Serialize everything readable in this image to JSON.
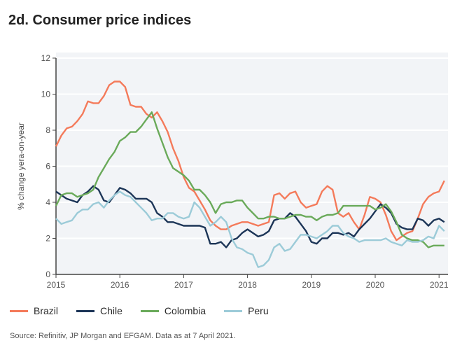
{
  "title": "2d. Consumer price indices",
  "source": "Source: Refinitiv, JP Morgan and EFGAM. Data as at 7 April 2021.",
  "chart_data": {
    "type": "line",
    "title": "2d. Consumer price indices",
    "xlabel": "",
    "ylabel": "% change yera-on-year",
    "ylim": [
      0,
      12
    ],
    "yticks": [
      "0",
      "2",
      "4",
      "6",
      "8",
      "10",
      "12"
    ],
    "xticks": [
      "2015",
      "2016",
      "2017",
      "2018",
      "2019",
      "2020",
      "2021"
    ],
    "x_start": "2015-01",
    "x_frequency": "monthly",
    "grid": "horizontal",
    "legend": "bottom",
    "series": [
      {
        "name": "Brazil",
        "color": "#f47a5a",
        "values": [
          7.1,
          7.7,
          8.1,
          8.2,
          8.5,
          8.9,
          9.6,
          9.5,
          9.5,
          9.9,
          10.5,
          10.7,
          10.7,
          10.4,
          9.4,
          9.3,
          9.3,
          8.9,
          8.7,
          9.0,
          8.5,
          7.9,
          7.0,
          6.3,
          5.4,
          4.8,
          4.6,
          4.1,
          3.6,
          3.0,
          2.7,
          2.5,
          2.5,
          2.7,
          2.8,
          2.9,
          2.9,
          2.8,
          2.7,
          2.8,
          2.9,
          4.4,
          4.5,
          4.2,
          4.5,
          4.6,
          4.0,
          3.7,
          3.8,
          3.9,
          4.6,
          4.9,
          4.7,
          3.4,
          3.2,
          3.4,
          2.9,
          2.5,
          3.3,
          4.3,
          4.2,
          4.0,
          3.3,
          2.4,
          1.9,
          2.1,
          2.3,
          2.4,
          3.1,
          3.9,
          4.3,
          4.5,
          4.6,
          5.2
        ]
      },
      {
        "name": "Chile",
        "color": "#1c3557",
        "values": [
          4.6,
          4.4,
          4.2,
          4.1,
          4.0,
          4.4,
          4.6,
          4.9,
          4.7,
          4.1,
          4.0,
          4.4,
          4.8,
          4.7,
          4.5,
          4.2,
          4.2,
          4.2,
          4.0,
          3.4,
          3.2,
          2.9,
          2.9,
          2.8,
          2.7,
          2.7,
          2.7,
          2.7,
          2.6,
          1.7,
          1.7,
          1.8,
          1.5,
          1.9,
          2.0,
          2.3,
          2.5,
          2.3,
          2.1,
          2.2,
          2.4,
          3.0,
          3.1,
          3.1,
          3.4,
          3.2,
          2.8,
          2.4,
          1.8,
          1.7,
          2.0,
          2.0,
          2.3,
          2.3,
          2.2,
          2.3,
          2.1,
          2.5,
          2.8,
          3.1,
          3.5,
          3.9,
          3.7,
          3.4,
          2.8,
          2.6,
          2.5,
          2.5,
          3.1,
          3.0,
          2.7,
          3.0,
          3.1,
          2.9
        ]
      },
      {
        "name": "Colombia",
        "color": "#6aaa5a",
        "values": [
          3.8,
          4.4,
          4.5,
          4.5,
          4.3,
          4.4,
          4.5,
          4.7,
          5.4,
          5.9,
          6.4,
          6.8,
          7.4,
          7.6,
          7.9,
          7.9,
          8.2,
          8.6,
          9.0,
          8.1,
          7.3,
          6.5,
          5.9,
          5.7,
          5.5,
          5.2,
          4.7,
          4.7,
          4.4,
          4.0,
          3.4,
          3.9,
          4.0,
          4.0,
          4.1,
          4.1,
          3.7,
          3.4,
          3.1,
          3.1,
          3.2,
          3.2,
          3.1,
          3.1,
          3.2,
          3.3,
          3.3,
          3.2,
          3.2,
          3.0,
          3.2,
          3.3,
          3.3,
          3.4,
          3.8,
          3.8,
          3.8,
          3.8,
          3.8,
          3.8,
          3.6,
          3.7,
          3.9,
          3.5,
          2.9,
          2.2,
          2.0,
          1.9,
          1.9,
          1.8,
          1.5,
          1.6,
          1.6,
          1.6
        ]
      },
      {
        "name": "Peru",
        "color": "#9ccbd8",
        "values": [
          3.1,
          2.8,
          2.9,
          3.0,
          3.4,
          3.6,
          3.6,
          3.9,
          4.0,
          3.7,
          4.1,
          4.4,
          4.6,
          4.4,
          4.3,
          4.0,
          3.7,
          3.4,
          3.0,
          3.1,
          3.1,
          3.4,
          3.4,
          3.2,
          3.1,
          3.2,
          4.0,
          3.7,
          3.2,
          2.7,
          2.9,
          3.2,
          2.9,
          2.0,
          1.5,
          1.4,
          1.2,
          1.1,
          0.4,
          0.5,
          0.8,
          1.5,
          1.7,
          1.3,
          1.4,
          1.8,
          2.2,
          2.2,
          2.1,
          2.0,
          2.2,
          2.4,
          2.7,
          2.7,
          2.3,
          2.1,
          2.0,
          1.8,
          1.9,
          1.9,
          1.9,
          1.9,
          2.0,
          1.8,
          1.7,
          1.6,
          1.9,
          1.8,
          1.8,
          1.9,
          2.1,
          2.0,
          2.7,
          2.4
        ]
      }
    ]
  }
}
